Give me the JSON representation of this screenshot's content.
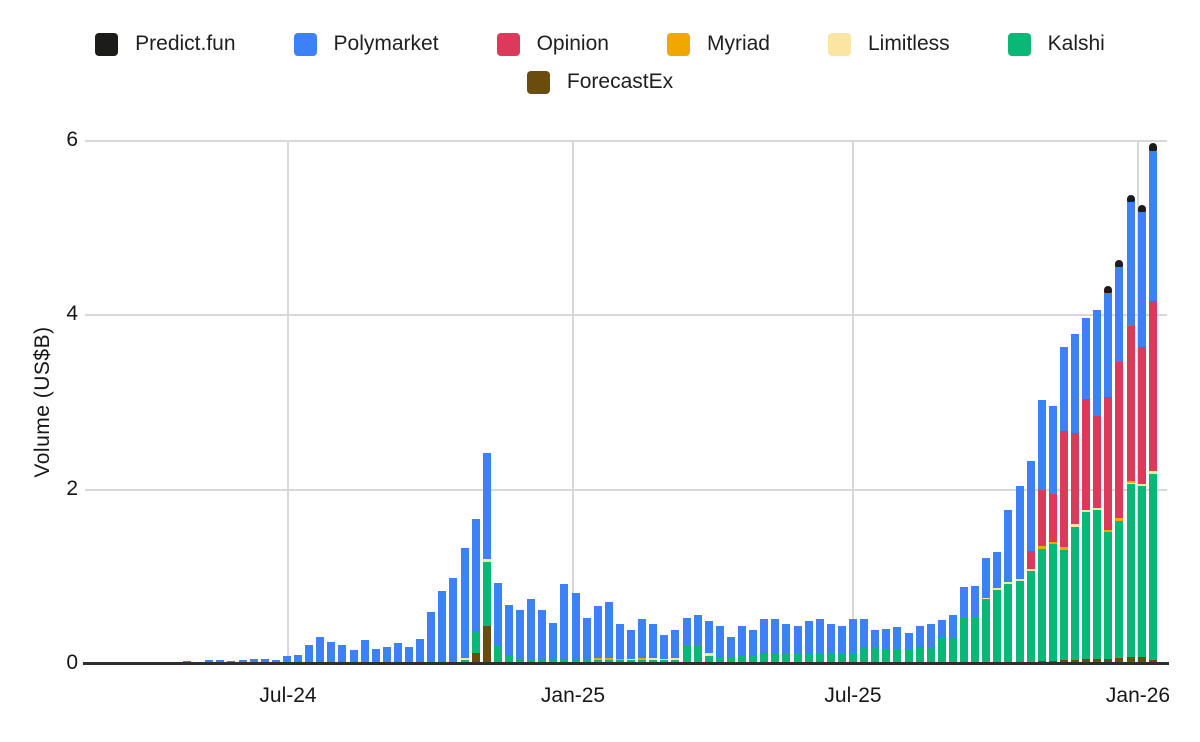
{
  "chart": {
    "y_axis_title": "Volume (US$B)",
    "y_ticks": [
      "6",
      "4",
      "2",
      "0"
    ],
    "x_ticks": [
      "Jul-24",
      "Jan-25",
      "Jul-25",
      "Jan-26"
    ],
    "legend": [
      {
        "label": "Predict.fun",
        "color": "#1c1c1a"
      },
      {
        "label": "Polymarket",
        "color": "#3c82f6"
      },
      {
        "label": "Opinion",
        "color": "#db3a5b"
      },
      {
        "label": "Myriad",
        "color": "#f0a800"
      },
      {
        "label": "Limitless",
        "color": "#fae6a2"
      },
      {
        "label": "Kalshi",
        "color": "#09b877"
      },
      {
        "label": "ForecastEx",
        "color": "#6a4d0e"
      }
    ]
  },
  "chart_data": {
    "type": "bar",
    "stacked": true,
    "title": "",
    "xlabel": "",
    "ylabel": "Volume (US$B)",
    "ylim": [
      0,
      6
    ],
    "y_tick_values": [
      0,
      2,
      4,
      6
    ],
    "x_tick_labels": [
      "Jul-24",
      "Jan-25",
      "Jul-25",
      "Jan-26"
    ],
    "x_description": "88 weekly bars, late Apr 2024 through early Jan 2026; only month ticks Jul-24, Jan-25, Jul-25, Jan-26 are labeled",
    "grid": true,
    "legend_position": "top-center",
    "units": "US$ billions",
    "series": [
      {
        "name": "ForecastEx",
        "color": "#6a4d0e",
        "stack_order": 1,
        "values": [
          0,
          0,
          0,
          0,
          0,
          0,
          0,
          0,
          0,
          0,
          0,
          0,
          0,
          0,
          0,
          0,
          0,
          0,
          0,
          0,
          0,
          0,
          0,
          0,
          0,
          0,
          0.11,
          0.42,
          0,
          0,
          0,
          0,
          0,
          0,
          0,
          0,
          0,
          0,
          0,
          0,
          0,
          0,
          0,
          0,
          0,
          0,
          0,
          0,
          0,
          0,
          0,
          0,
          0,
          0,
          0,
          0,
          0,
          0,
          0,
          0,
          0,
          0,
          0,
          0,
          0,
          0,
          0,
          0,
          0,
          0,
          0,
          0,
          0,
          0,
          0,
          0,
          0,
          0.02,
          0.02,
          0.03,
          0.04,
          0.05,
          0.05,
          0.05,
          0.06,
          0.07,
          0.07,
          0.03
        ]
      },
      {
        "name": "Kalshi",
        "color": "#09b877",
        "stack_order": 2,
        "values": [
          0,
          0,
          0,
          0,
          0,
          0,
          0,
          0,
          0,
          0,
          0,
          0,
          0,
          0,
          0,
          0,
          0,
          0,
          0,
          0,
          0,
          0,
          0,
          0,
          0.02,
          0.04,
          0.26,
          0.74,
          0.21,
          0.08,
          0.05,
          0.05,
          0.04,
          0.03,
          0.04,
          0.03,
          0.03,
          0.04,
          0.04,
          0.03,
          0.03,
          0.04,
          0.04,
          0.03,
          0.04,
          0.2,
          0.2,
          0.08,
          0.06,
          0.06,
          0.08,
          0.08,
          0.1,
          0.1,
          0.1,
          0.1,
          0.12,
          0.12,
          0.12,
          0.12,
          0.11,
          0.17,
          0.18,
          0.16,
          0.16,
          0.16,
          0.18,
          0.18,
          0.3,
          0.29,
          0.53,
          0.53,
          0.73,
          0.84,
          0.91,
          0.94,
          1.06,
          1.29,
          1.34,
          1.27,
          1.52,
          1.68,
          1.7,
          1.45,
          1.57,
          1.98,
          1.96,
          2.14
        ]
      },
      {
        "name": "Limitless",
        "color": "#fae6a2",
        "stack_order": 3,
        "values": [
          0,
          0,
          0,
          0,
          0,
          0,
          0,
          0,
          0,
          0,
          0,
          0,
          0,
          0,
          0,
          0,
          0,
          0,
          0,
          0,
          0,
          0,
          0,
          0,
          0,
          0.02,
          0,
          0.03,
          0,
          0,
          0,
          0,
          0,
          0,
          0,
          0,
          0,
          0,
          0,
          0,
          0.02,
          0,
          0.02,
          0.02,
          0.02,
          0,
          0,
          0.03,
          0,
          0,
          0,
          0,
          0,
          0,
          0,
          0,
          0,
          0,
          0,
          0,
          0,
          0,
          0,
          0,
          0,
          0,
          0,
          0,
          0,
          0,
          0,
          0,
          0.02,
          0.02,
          0.02,
          0.02,
          0.02,
          0,
          0,
          0,
          0.03,
          0.03,
          0.03,
          0,
          0,
          0.02,
          0.02,
          0.03
        ]
      },
      {
        "name": "Myriad",
        "color": "#f0a800",
        "stack_order": 4,
        "values": [
          0,
          0,
          0,
          0,
          0,
          0,
          0,
          0,
          0,
          0,
          0,
          0,
          0,
          0,
          0,
          0,
          0,
          0,
          0,
          0,
          0,
          0,
          0,
          0,
          0,
          0,
          0,
          0,
          0,
          0,
          0,
          0,
          0,
          0,
          0,
          0,
          0,
          0.02,
          0.02,
          0.02,
          0,
          0.02,
          0,
          0,
          0,
          0,
          0,
          0,
          0,
          0,
          0,
          0,
          0,
          0,
          0,
          0,
          0,
          0,
          0,
          0,
          0,
          0,
          0,
          0,
          0,
          0,
          0,
          0,
          0,
          0,
          0,
          0,
          0,
          0,
          0,
          0,
          0,
          0.03,
          0.03,
          0.03,
          0,
          0,
          0,
          0.03,
          0.03,
          0.02,
          0,
          0
        ]
      },
      {
        "name": "Opinion",
        "color": "#db3a5b",
        "stack_order": 5,
        "values": [
          0,
          0,
          0,
          0,
          0,
          0,
          0,
          0,
          0,
          0,
          0,
          0,
          0,
          0,
          0,
          0,
          0,
          0,
          0,
          0,
          0,
          0,
          0,
          0,
          0,
          0,
          0,
          0,
          0,
          0,
          0,
          0,
          0,
          0,
          0,
          0,
          0,
          0,
          0,
          0,
          0,
          0,
          0,
          0,
          0,
          0,
          0,
          0,
          0,
          0,
          0,
          0,
          0,
          0,
          0,
          0,
          0,
          0,
          0,
          0,
          0,
          0,
          0,
          0,
          0,
          0,
          0,
          0,
          0,
          0,
          0,
          0,
          0,
          0,
          0,
          0,
          0.2,
          0.64,
          0.55,
          1.33,
          1.05,
          1.27,
          1.05,
          1.52,
          1.79,
          1.78,
          1.58,
          1.95
        ]
      },
      {
        "name": "Polymarket",
        "color": "#3c82f6",
        "stack_order": 6,
        "values": [
          0.02,
          0.01,
          0.03,
          0.03,
          0.02,
          0.03,
          0.05,
          0.05,
          0.04,
          0.08,
          0.09,
          0.21,
          0.3,
          0.24,
          0.21,
          0.15,
          0.26,
          0.16,
          0.18,
          0.23,
          0.18,
          0.28,
          0.59,
          0.83,
          0.95,
          1.26,
          1.28,
          1.22,
          0.71,
          0.59,
          0.56,
          0.69,
          0.57,
          0.43,
          0.87,
          0.77,
          0.49,
          0.59,
          0.64,
          0.4,
          0.33,
          0.44,
          0.39,
          0.27,
          0.32,
          0.32,
          0.35,
          0.37,
          0.36,
          0.24,
          0.34,
          0.3,
          0.4,
          0.4,
          0.35,
          0.32,
          0.36,
          0.38,
          0.33,
          0.3,
          0.39,
          0.34,
          0.2,
          0.23,
          0.25,
          0.19,
          0.24,
          0.27,
          0.19,
          0.26,
          0.34,
          0.35,
          0.46,
          0.41,
          0.83,
          1.07,
          1.04,
          1.04,
          1.01,
          0.96,
          1.14,
          0.93,
          1.22,
          1.2,
          1.09,
          1.42,
          1.54,
          1.72
        ]
      },
      {
        "name": "Predict.fun",
        "color": "#1c1c1a",
        "stack_order": 7,
        "values": [
          0,
          0,
          0,
          0,
          0,
          0,
          0,
          0,
          0,
          0,
          0,
          0,
          0,
          0,
          0,
          0,
          0,
          0,
          0,
          0,
          0,
          0,
          0,
          0,
          0,
          0,
          0,
          0,
          0,
          0,
          0,
          0,
          0,
          0,
          0,
          0,
          0,
          0,
          0,
          0,
          0,
          0,
          0,
          0,
          0,
          0,
          0,
          0,
          0,
          0,
          0,
          0,
          0,
          0,
          0,
          0,
          0,
          0,
          0,
          0,
          0,
          0,
          0,
          0,
          0,
          0,
          0,
          0,
          0,
          0,
          0,
          0,
          0,
          0,
          0,
          0,
          0,
          0,
          0,
          0,
          0,
          0,
          0,
          0.08,
          0.08,
          0.08,
          0.08,
          0.1
        ]
      }
    ]
  }
}
